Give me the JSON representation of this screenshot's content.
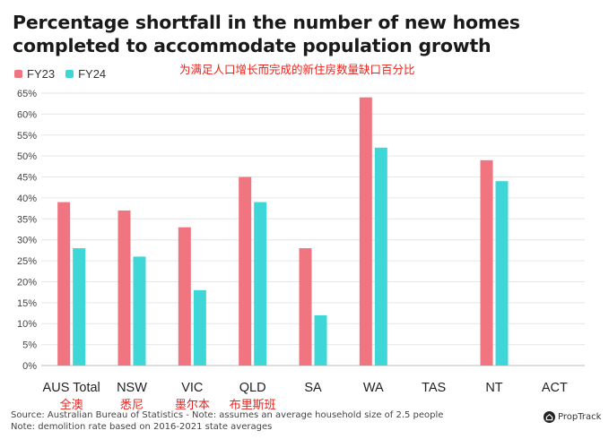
{
  "chart_data": {
    "type": "bar",
    "title": "Percentage shortfall in the number of new homes completed to accommodate population growth",
    "annotation": "为满足人口增长而完成的新住房数量缺口百分比",
    "categories": [
      "AUS Total",
      "NSW",
      "VIC",
      "QLD",
      "SA",
      "WA",
      "TAS",
      "NT",
      "ACT"
    ],
    "category_translations": [
      "全澳",
      "悉尼",
      "墨尔本",
      "布里斯班",
      "",
      "",
      "",
      "",
      ""
    ],
    "series": [
      {
        "name": "FY23",
        "color": "#f07580",
        "values": [
          39,
          37,
          33,
          45,
          28,
          64,
          null,
          49,
          null
        ]
      },
      {
        "name": "FY24",
        "color": "#3fd6d8",
        "values": [
          28,
          26,
          18,
          39,
          12,
          52,
          null,
          44,
          null
        ]
      }
    ],
    "ylim": [
      0,
      65
    ],
    "yticks": [
      "0%",
      "5%",
      "10%",
      "15%",
      "20%",
      "25%",
      "30%",
      "35%",
      "40%",
      "45%",
      "50%",
      "55%",
      "60%",
      "65%"
    ],
    "xlabel": "",
    "ylabel": "",
    "grid": true,
    "legend_position": "top-left"
  },
  "source_note": "Source: Australian Bureau of Statistics - Note: assumes an average household size of 2.5 people",
  "demolition_note": "Note: demolition rate based on 2016-2021 state averages",
  "brand": "PropTrack",
  "translation_color": "#e8231d"
}
